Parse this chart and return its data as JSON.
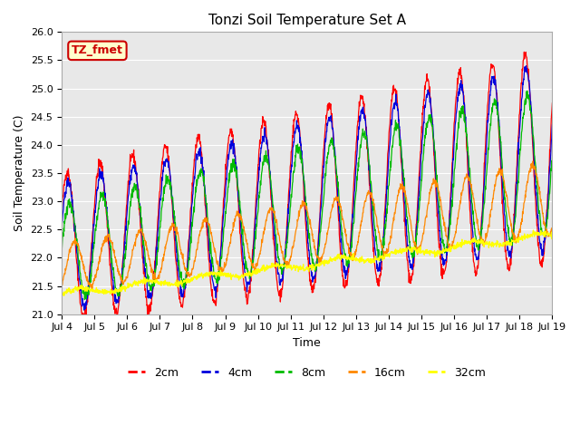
{
  "title": "Tonzi Soil Temperature Set A",
  "xlabel": "Time",
  "ylabel": "Soil Temperature (C)",
  "ylim": [
    21.0,
    26.0
  ],
  "bg_color": "#e8e8e8",
  "fig_bg": "#ffffff",
  "annotation": "TZ_fmet",
  "annotation_fc": "#ffffcc",
  "annotation_ec": "#cc0000",
  "line_colors": {
    "2cm": "#ff0000",
    "4cm": "#0000dd",
    "8cm": "#00bb00",
    "16cm": "#ff8800",
    "32cm": "#ffff00"
  },
  "legend_labels": [
    "2cm",
    "4cm",
    "8cm",
    "16cm",
    "32cm"
  ],
  "xtick_labels": [
    "Jul 4",
    "Jul 5",
    "Jul 6",
    "Jul 7",
    "Jul 8",
    "Jul 9",
    "Jul 10",
    "Jul 11",
    "Jul 12",
    "Jul 13",
    "Jul 14",
    "Jul 15",
    "Jul 16",
    "Jul 17",
    "Jul 18",
    "Jul 19"
  ],
  "n_points": 1500
}
